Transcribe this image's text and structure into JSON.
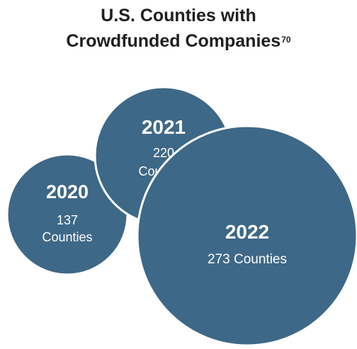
{
  "chart_data": {
    "type": "bubble",
    "title_main": "U.S. Counties with",
    "title_line2": "Crowdfunded Companies",
    "title_footnote": "70",
    "unit_label": "Counties",
    "colors": {
      "bubble_fill": "#3e6887",
      "bubble_stroke": "#ffffff",
      "text": "#ffffff"
    },
    "bubbles": [
      {
        "year": "2020",
        "value": 137,
        "label_lines": [
          "137",
          "Counties"
        ]
      },
      {
        "year": "2021",
        "value": 220,
        "label_lines": [
          "220",
          "Counties"
        ]
      },
      {
        "year": "2022",
        "value": 273,
        "label_lines": [
          "273 Counties"
        ]
      }
    ]
  }
}
